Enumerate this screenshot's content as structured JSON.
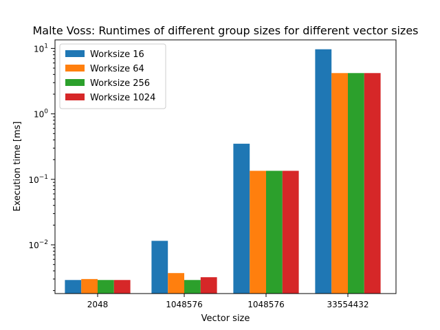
{
  "chart_data": {
    "type": "bar",
    "title": "Malte Voss: Runtimes of different group sizes for different vector sizes",
    "xlabel": "Vector size",
    "ylabel": "Execution time [ms]",
    "y_scale": "log",
    "ylim": [
      0.0018,
      13.5
    ],
    "y_ticks": [
      0.01,
      0.1,
      1,
      10
    ],
    "y_tick_labels": [
      {
        "base": "10",
        "exp": "−2"
      },
      {
        "base": "10",
        "exp": "−1"
      },
      {
        "base": "10",
        "exp": "0"
      },
      {
        "base": "10",
        "exp": "1"
      }
    ],
    "grid": false,
    "legend_position": "top-left",
    "categories": [
      "2048",
      "1048576",
      "1048576",
      "33554432"
    ],
    "series": [
      {
        "name": "Worksize 16",
        "color": "#1f77b4",
        "values": [
          0.0029,
          0.0115,
          0.35,
          9.7
        ]
      },
      {
        "name": "Worksize 64",
        "color": "#ff7f0e",
        "values": [
          0.003,
          0.0037,
          0.135,
          4.2
        ]
      },
      {
        "name": "Worksize 256",
        "color": "#2ca02c",
        "values": [
          0.0029,
          0.0029,
          0.135,
          4.2
        ]
      },
      {
        "name": "Worksize 1024",
        "color": "#d62728",
        "values": [
          0.0029,
          0.0032,
          0.135,
          4.2
        ]
      }
    ]
  }
}
